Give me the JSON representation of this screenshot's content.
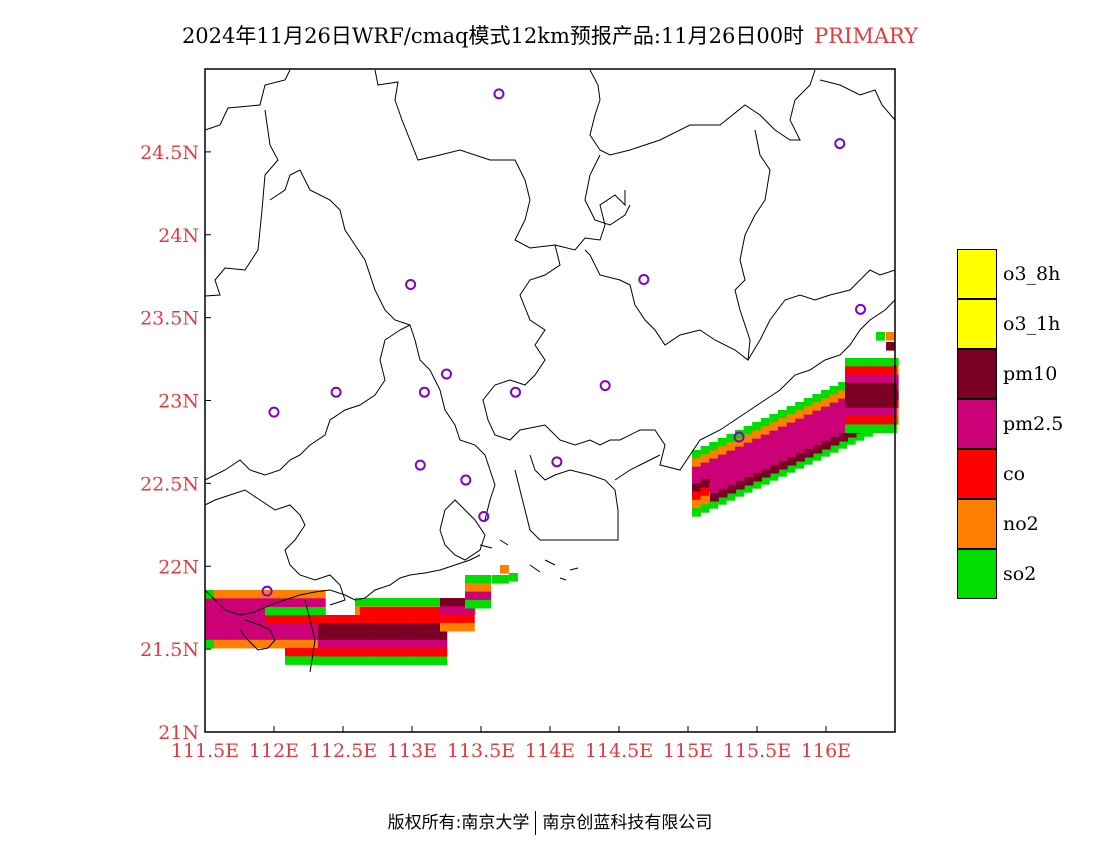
{
  "title": {
    "main": "2024年11月26日WRF/cmaq模式12km预报产品:11月26日00时",
    "highlight": "PRIMARY"
  },
  "colors": {
    "axis_label": "#e8383d",
    "so2": "#00dd00",
    "no2": "#ff8000",
    "co": "#ff0000",
    "pm25": "#cc0077",
    "pm10": "#7a0026",
    "o3_1h": "#ffff00",
    "o3_8h": "#ffff00"
  },
  "chart_data": {
    "type": "heatmap",
    "x_ticks": [
      "111.5E",
      "112E",
      "112.5E",
      "113E",
      "113.5E",
      "114E",
      "114.5E",
      "115E",
      "115.5E",
      "116E"
    ],
    "y_ticks": [
      "21N",
      "21.5N",
      "22N",
      "22.5N",
      "23N",
      "23.5N",
      "24N",
      "24.5N"
    ],
    "xlim": [
      111.5,
      116.5
    ],
    "ylim": [
      21.0,
      25.0
    ],
    "legend": [
      {
        "label": "o3_8h",
        "color": "#ffff00"
      },
      {
        "label": "o3_1h",
        "color": "#ffff00"
      },
      {
        "label": "pm10",
        "color": "#7a0026"
      },
      {
        "label": "pm2.5",
        "color": "#cc0077"
      },
      {
        "label": "co",
        "color": "#ff0000"
      },
      {
        "label": "no2",
        "color": "#ff8000"
      },
      {
        "label": "so2",
        "color": "#00dd00"
      }
    ],
    "stations": [
      [
        113.63,
        24.85
      ],
      [
        116.1,
        24.55
      ],
      [
        114.68,
        23.73
      ],
      [
        112.99,
        23.7
      ],
      [
        116.25,
        23.55
      ],
      [
        113.25,
        23.16
      ],
      [
        112.45,
        23.05
      ],
      [
        113.09,
        23.05
      ],
      [
        113.75,
        23.05
      ],
      [
        114.4,
        23.09
      ],
      [
        112.0,
        22.93
      ],
      [
        115.37,
        22.78
      ],
      [
        113.06,
        22.61
      ],
      [
        114.05,
        22.63
      ],
      [
        113.39,
        22.52
      ],
      [
        113.52,
        22.3
      ],
      [
        111.95,
        21.85
      ]
    ]
  },
  "footer": {
    "left": "版权所有:南京大学",
    "right": "南京创蓝科技有限公司"
  }
}
